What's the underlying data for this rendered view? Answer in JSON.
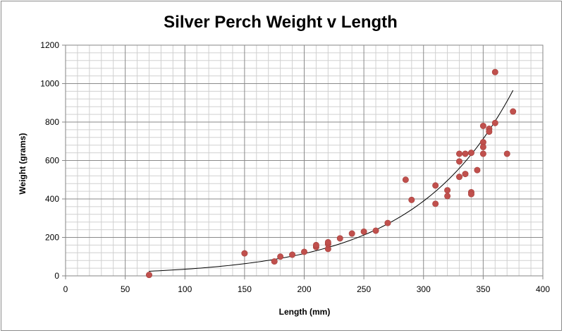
{
  "chart_data": {
    "type": "scatter",
    "title": "Silver Perch Weight v Length",
    "xlabel": "Length (mm)",
    "ylabel": "Weight (grams)",
    "xlim": [
      0,
      400
    ],
    "ylim": [
      0,
      1200
    ],
    "x_ticks": [
      0,
      50,
      100,
      150,
      200,
      250,
      300,
      350,
      400
    ],
    "y_ticks": [
      0,
      200,
      400,
      600,
      800,
      1000,
      1200
    ],
    "x_minor_step": 10,
    "y_minor_step": 40,
    "grid": true,
    "legend": "none",
    "marker_color": "#c0504d",
    "trendline": {
      "type": "exponential",
      "x_range": [
        70,
        375
      ],
      "y_at_start": 24,
      "y_at_end": 965,
      "color": "#000000"
    },
    "series": [
      {
        "points": [
          [
            70,
            5
          ],
          [
            150,
            117
          ],
          [
            175,
            75
          ],
          [
            180,
            100
          ],
          [
            190,
            110
          ],
          [
            200,
            125
          ],
          [
            210,
            150
          ],
          [
            210,
            160
          ],
          [
            220,
            140
          ],
          [
            220,
            165
          ],
          [
            220,
            175
          ],
          [
            230,
            195
          ],
          [
            240,
            220
          ],
          [
            250,
            230
          ],
          [
            260,
            235
          ],
          [
            270,
            275
          ],
          [
            285,
            500
          ],
          [
            290,
            395
          ],
          [
            310,
            470
          ],
          [
            310,
            375
          ],
          [
            320,
            445
          ],
          [
            320,
            415
          ],
          [
            330,
            635
          ],
          [
            330,
            595
          ],
          [
            330,
            515
          ],
          [
            335,
            635
          ],
          [
            335,
            530
          ],
          [
            340,
            640
          ],
          [
            340,
            435
          ],
          [
            340,
            425
          ],
          [
            345,
            550
          ],
          [
            350,
            780
          ],
          [
            350,
            695
          ],
          [
            350,
            670
          ],
          [
            350,
            635
          ],
          [
            355,
            765
          ],
          [
            355,
            750
          ],
          [
            360,
            1060
          ],
          [
            360,
            795
          ],
          [
            370,
            635
          ],
          [
            375,
            855
          ]
        ]
      }
    ]
  }
}
